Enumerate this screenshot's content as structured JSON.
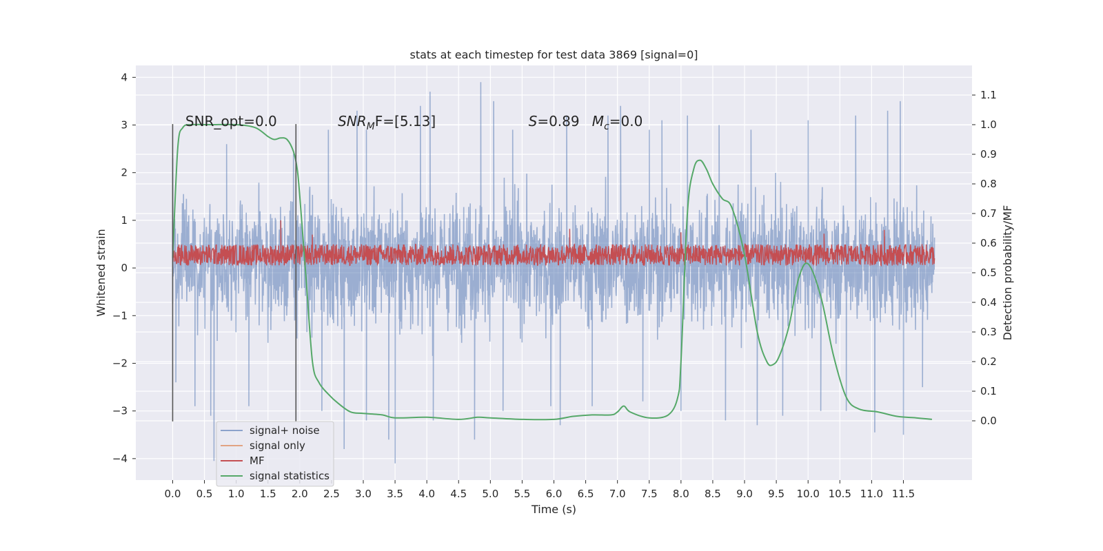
{
  "chart_data": {
    "type": "line",
    "title": "stats at each timestep for test data 3869 [signal=0]",
    "xlabel": "Time (s)",
    "ylabel_left": "Whitened strain",
    "ylabel_right": "Detection probability/MF",
    "xlim": [
      -0.58,
      12.58
    ],
    "ylim_left": [
      -4.45,
      4.25
    ],
    "ylim_right": [
      -0.2,
      1.2
    ],
    "x_ticks": [
      "0.0",
      "0.5",
      "1.0",
      "1.5",
      "2.0",
      "2.5",
      "3.0",
      "3.5",
      "4.0",
      "4.5",
      "5.0",
      "5.5",
      "6.0",
      "6.5",
      "7.0",
      "7.5",
      "8.0",
      "8.5",
      "9.0",
      "9.5",
      "10.0",
      "10.5",
      "11.0",
      "11.5"
    ],
    "y_ticks_left": [
      "4",
      "3",
      "2",
      "1",
      "0",
      "−1",
      "−2",
      "−3",
      "−4"
    ],
    "y_ticks_right": [
      "1.1",
      "1.0",
      "0.9",
      "0.8",
      "0.7",
      "0.6",
      "0.5",
      "0.4",
      "0.3",
      "0.2",
      "0.1",
      "0.0"
    ],
    "grid": true,
    "legend_position": "lower-left",
    "vlines_x": [
      0.0,
      1.94
    ],
    "annotations": [
      {
        "text": "SNR_opt=0.0"
      },
      {
        "text": "SNR",
        "sub": "M",
        "rest": "F=[5.13]"
      },
      {
        "text": "S",
        "rest": "=0.89"
      },
      {
        "text": "M",
        "sub": "c",
        "rest": "=0.0"
      }
    ],
    "series": [
      {
        "name": "signal+ noise",
        "axis": "left",
        "color": "#4c72b0",
        "note": "dense white-noise strain",
        "x_range": [
          0.0,
          11.99
        ],
        "typical_envelope": [
          -1.9,
          2.0
        ],
        "peaks": [
          [
            0.0,
            2.3
          ],
          [
            0.85,
            2.6
          ],
          [
            1.9,
            2.4
          ],
          [
            2.45,
            2.9
          ],
          [
            2.9,
            3.3
          ],
          [
            3.05,
            2.9
          ],
          [
            3.9,
            3.4
          ],
          [
            4.05,
            3.7
          ],
          [
            4.85,
            3.9
          ],
          [
            5.05,
            3.5
          ],
          [
            5.35,
            2.9
          ],
          [
            6.2,
            3.2
          ],
          [
            6.85,
            3.2
          ],
          [
            7.05,
            3.4
          ],
          [
            7.5,
            2.9
          ],
          [
            7.7,
            3.1
          ],
          [
            8.1,
            3.2
          ],
          [
            8.6,
            3.0
          ],
          [
            9.1,
            2.9
          ],
          [
            10.0,
            3.1
          ],
          [
            10.75,
            3.2
          ],
          [
            11.25,
            3.3
          ],
          [
            11.45,
            3.5
          ]
        ],
        "troughs": [
          [
            0.05,
            -2.4
          ],
          [
            0.35,
            -2.9
          ],
          [
            0.6,
            -3.1
          ],
          [
            0.65,
            -4.05
          ],
          [
            1.2,
            -2.9
          ],
          [
            2.35,
            -3.0
          ],
          [
            2.7,
            -3.8
          ],
          [
            3.05,
            -3.2
          ],
          [
            3.4,
            -3.6
          ],
          [
            3.5,
            -4.1
          ],
          [
            4.1,
            -3.2
          ],
          [
            4.75,
            -3.6
          ],
          [
            5.2,
            -3.0
          ],
          [
            5.95,
            -2.9
          ],
          [
            6.1,
            -3.3
          ],
          [
            6.6,
            -2.9
          ],
          [
            7.4,
            -2.8
          ],
          [
            8.0,
            -3.0
          ],
          [
            8.7,
            -3.2
          ],
          [
            9.2,
            -3.3
          ],
          [
            9.6,
            -3.1
          ],
          [
            10.2,
            -3.0
          ],
          [
            10.6,
            -3.0
          ],
          [
            11.05,
            -3.45
          ],
          [
            11.5,
            -3.5
          ],
          [
            11.8,
            -2.5
          ]
        ]
      },
      {
        "name": "signal only",
        "axis": "left",
        "color": "#dd8452",
        "x": [],
        "y": []
      },
      {
        "name": "MF",
        "axis": "left",
        "color": "#c44e52",
        "note": "matched-filter band, values mostly between 0.05 and 0.55",
        "x_range": [
          0.0,
          11.99
        ],
        "band": [
          0.05,
          0.5
        ],
        "spikes": [
          [
            1.7,
            1.0
          ],
          [
            2.2,
            0.7
          ],
          [
            6.25,
            0.82
          ],
          [
            8.0,
            0.75
          ],
          [
            10.25,
            0.72
          ],
          [
            11.2,
            0.8
          ]
        ]
      },
      {
        "name": "signal statistics",
        "axis": "right",
        "color": "#55a868",
        "x": [
          0.0,
          0.08,
          0.16,
          0.3,
          0.6,
          1.0,
          1.3,
          1.5,
          1.6,
          1.7,
          1.8,
          1.9,
          1.96,
          2.0,
          2.1,
          2.2,
          2.3,
          2.45,
          2.6,
          2.8,
          3.0,
          3.3,
          3.5,
          4.0,
          4.5,
          4.8,
          5.0,
          5.5,
          6.0,
          6.3,
          6.6,
          6.9,
          7.0,
          7.1,
          7.2,
          7.5,
          7.8,
          7.95,
          8.0,
          8.1,
          8.2,
          8.3,
          8.4,
          8.5,
          8.65,
          8.8,
          9.0,
          9.2,
          9.35,
          9.45,
          9.55,
          9.7,
          9.85,
          10.0,
          10.2,
          10.4,
          10.6,
          10.8,
          11.1,
          11.4,
          11.7,
          11.95
        ],
        "y": [
          0.55,
          0.92,
          0.99,
          1.0,
          1.0,
          1.0,
          0.99,
          0.96,
          0.95,
          0.955,
          0.95,
          0.91,
          0.85,
          0.76,
          0.48,
          0.2,
          0.13,
          0.09,
          0.06,
          0.03,
          0.025,
          0.02,
          0.01,
          0.012,
          0.005,
          0.012,
          0.01,
          0.005,
          0.005,
          0.015,
          0.02,
          0.02,
          0.03,
          0.05,
          0.03,
          0.01,
          0.02,
          0.08,
          0.2,
          0.7,
          0.85,
          0.88,
          0.85,
          0.8,
          0.75,
          0.72,
          0.56,
          0.3,
          0.2,
          0.19,
          0.22,
          0.32,
          0.48,
          0.53,
          0.42,
          0.22,
          0.08,
          0.04,
          0.03,
          0.015,
          0.01,
          0.005
        ]
      }
    ]
  }
}
